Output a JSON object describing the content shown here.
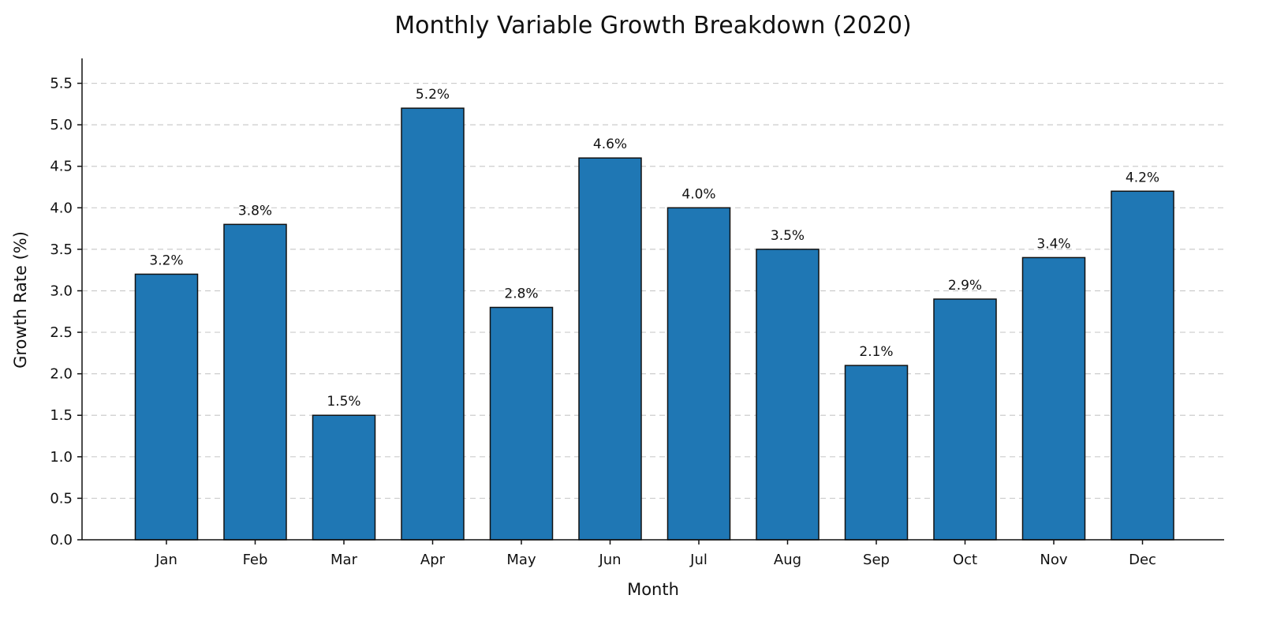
{
  "chart_data": {
    "type": "bar",
    "title": "Monthly Variable Growth Breakdown (2020)",
    "xlabel": "Month",
    "ylabel": "Growth Rate (%)",
    "categories": [
      "Jan",
      "Feb",
      "Mar",
      "Apr",
      "May",
      "Jun",
      "Jul",
      "Aug",
      "Sep",
      "Oct",
      "Nov",
      "Dec"
    ],
    "values": [
      3.2,
      3.8,
      1.5,
      5.2,
      2.8,
      4.6,
      4.0,
      3.5,
      2.1,
      2.9,
      3.4,
      4.2
    ],
    "data_labels": [
      "3.2%",
      "3.8%",
      "1.5%",
      "5.2%",
      "2.8%",
      "4.6%",
      "4.0%",
      "3.5%",
      "2.1%",
      "2.9%",
      "3.4%",
      "4.2%"
    ],
    "ylim": [
      0,
      5.8
    ],
    "yticks": [
      "0.0",
      "0.5",
      "1.0",
      "1.5",
      "2.0",
      "2.5",
      "3.0",
      "3.5",
      "4.0",
      "4.5",
      "5.0",
      "5.5"
    ],
    "grid": "horizontal dashed",
    "colors": {
      "bar": "#1f77b4",
      "bar_edge": "#111111",
      "grid": "#cccccc",
      "axis": "#111111"
    }
  }
}
